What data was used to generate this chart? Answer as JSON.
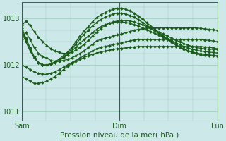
{
  "title": "Pression niveau de la mer( hPa )",
  "xlabel_sam": "Sam",
  "xlabel_dim": "Dim",
  "xlabel_lun": "Lun",
  "ylim": [
    1010.8,
    1013.35
  ],
  "yticks": [
    1011,
    1012,
    1013
  ],
  "background_color": "#cce8e8",
  "grid_color": "#99ccbb",
  "line_color": "#1a5c1a",
  "marker": "D",
  "markersize": 2.0,
  "linewidth": 0.9,
  "n_points": 48,
  "series": [
    [
      1012.55,
      1012.7,
      1012.55,
      1012.38,
      1012.25,
      1012.18,
      1012.15,
      1012.1,
      1012.08,
      1012.08,
      1012.1,
      1012.12,
      1012.15,
      1012.2,
      1012.25,
      1012.3,
      1012.38,
      1012.45,
      1012.52,
      1012.55,
      1012.58,
      1012.6,
      1012.62,
      1012.65,
      1012.67,
      1012.7,
      1012.72,
      1012.75,
      1012.77,
      1012.78,
      1012.8,
      1012.8,
      1012.8,
      1012.8,
      1012.8,
      1012.8,
      1012.8,
      1012.8,
      1012.8,
      1012.8,
      1012.8,
      1012.8,
      1012.8,
      1012.79,
      1012.78,
      1012.77,
      1012.76,
      1012.75
    ],
    [
      1012.0,
      1011.95,
      1011.9,
      1011.85,
      1011.82,
      1011.8,
      1011.8,
      1011.82,
      1011.85,
      1011.9,
      1011.95,
      1012.0,
      1012.05,
      1012.1,
      1012.15,
      1012.2,
      1012.25,
      1012.3,
      1012.35,
      1012.38,
      1012.4,
      1012.42,
      1012.44,
      1012.46,
      1012.48,
      1012.5,
      1012.52,
      1012.54,
      1012.55,
      1012.55,
      1012.55,
      1012.55,
      1012.55,
      1012.55,
      1012.55,
      1012.55,
      1012.55,
      1012.55,
      1012.55,
      1012.55,
      1012.55,
      1012.55,
      1012.55,
      1012.55,
      1012.54,
      1012.53,
      1012.52,
      1012.5
    ],
    [
      1011.75,
      1011.7,
      1011.65,
      1011.6,
      1011.6,
      1011.62,
      1011.65,
      1011.7,
      1011.75,
      1011.82,
      1011.9,
      1011.97,
      1012.03,
      1012.08,
      1012.12,
      1012.16,
      1012.2,
      1012.23,
      1012.26,
      1012.28,
      1012.3,
      1012.32,
      1012.34,
      1012.35,
      1012.36,
      1012.37,
      1012.38,
      1012.39,
      1012.4,
      1012.4,
      1012.4,
      1012.4,
      1012.4,
      1012.4,
      1012.4,
      1012.4,
      1012.4,
      1012.4,
      1012.4,
      1012.4,
      1012.4,
      1012.4,
      1012.4,
      1012.4,
      1012.39,
      1012.38,
      1012.37,
      1012.35
    ],
    [
      1012.7,
      1012.5,
      1012.3,
      1012.15,
      1012.05,
      1012.0,
      1012.0,
      1012.02,
      1012.05,
      1012.1,
      1012.15,
      1012.22,
      1012.3,
      1012.38,
      1012.47,
      1012.55,
      1012.62,
      1012.7,
      1012.77,
      1012.82,
      1012.87,
      1012.9,
      1012.92,
      1012.93,
      1012.93,
      1012.92,
      1012.9,
      1012.87,
      1012.84,
      1012.8,
      1012.76,
      1012.72,
      1012.68,
      1012.64,
      1012.6,
      1012.56,
      1012.52,
      1012.48,
      1012.44,
      1012.4,
      1012.37,
      1012.34,
      1012.32,
      1012.3,
      1012.29,
      1012.28,
      1012.27,
      1012.26
    ],
    [
      1012.75,
      1012.55,
      1012.35,
      1012.15,
      1012.05,
      1012.0,
      1012.0,
      1012.02,
      1012.05,
      1012.1,
      1012.17,
      1012.25,
      1012.35,
      1012.45,
      1012.56,
      1012.66,
      1012.75,
      1012.84,
      1012.92,
      1012.98,
      1013.03,
      1013.07,
      1013.1,
      1013.12,
      1013.12,
      1013.1,
      1013.07,
      1013.03,
      1012.98,
      1012.92,
      1012.86,
      1012.8,
      1012.73,
      1012.67,
      1012.61,
      1012.55,
      1012.49,
      1012.44,
      1012.39,
      1012.35,
      1012.31,
      1012.28,
      1012.26,
      1012.24,
      1012.23,
      1012.22,
      1012.21,
      1012.2
    ],
    [
      1012.8,
      1012.58,
      1012.37,
      1012.18,
      1012.05,
      1012.0,
      1012.0,
      1012.03,
      1012.07,
      1012.13,
      1012.2,
      1012.28,
      1012.38,
      1012.5,
      1012.62,
      1012.73,
      1012.83,
      1012.93,
      1013.02,
      1013.08,
      1013.13,
      1013.18,
      1013.2,
      1013.22,
      1013.22,
      1013.2,
      1013.17,
      1013.12,
      1013.06,
      1012.99,
      1012.92,
      1012.84,
      1012.77,
      1012.7,
      1012.63,
      1012.57,
      1012.5,
      1012.44,
      1012.39,
      1012.34,
      1012.3,
      1012.27,
      1012.24,
      1012.22,
      1012.21,
      1012.2,
      1012.2,
      1012.19
    ],
    [
      1012.85,
      1012.95,
      1012.85,
      1012.72,
      1012.6,
      1012.5,
      1012.42,
      1012.35,
      1012.3,
      1012.27,
      1012.25,
      1012.25,
      1012.27,
      1012.32,
      1012.38,
      1012.45,
      1012.53,
      1012.62,
      1012.71,
      1012.78,
      1012.85,
      1012.9,
      1012.93,
      1012.95,
      1012.96,
      1012.96,
      1012.95,
      1012.93,
      1012.9,
      1012.87,
      1012.83,
      1012.79,
      1012.75,
      1012.71,
      1012.67,
      1012.62,
      1012.58,
      1012.54,
      1012.5,
      1012.46,
      1012.43,
      1012.4,
      1012.38,
      1012.36,
      1012.35,
      1012.34,
      1012.34,
      1012.33
    ]
  ]
}
